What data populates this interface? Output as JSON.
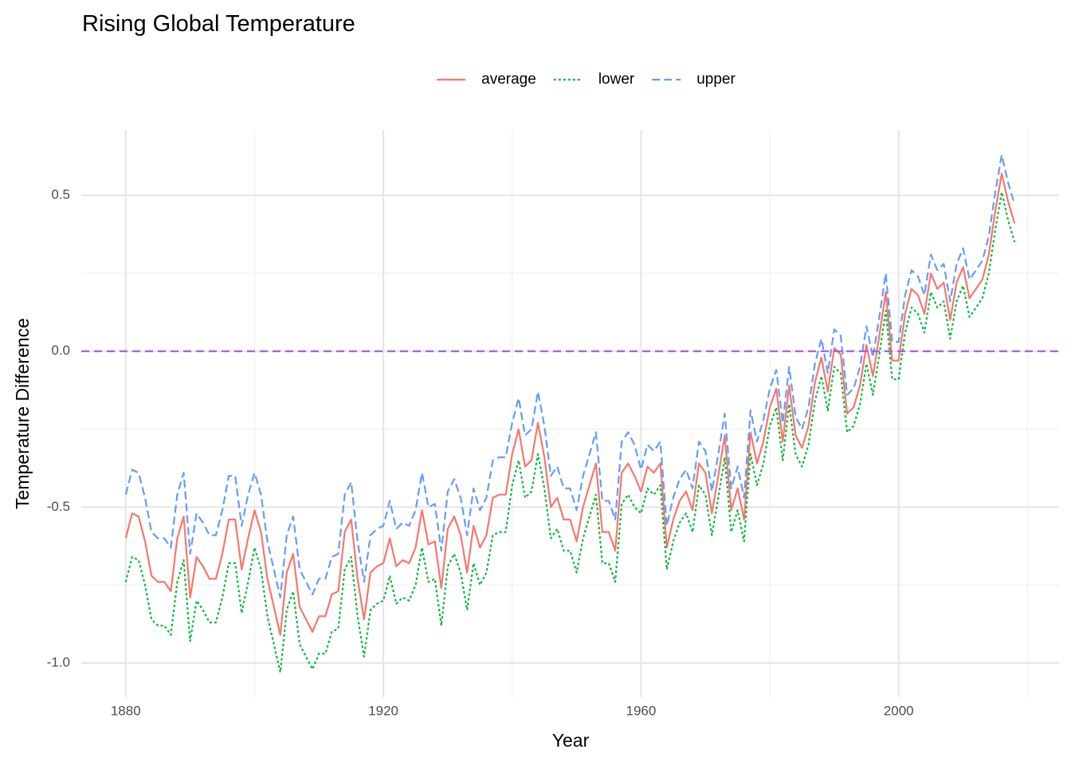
{
  "chart_data": {
    "type": "line",
    "title": "Rising Global Temperature",
    "x_label": "Year",
    "y_label": "Temperature Difference",
    "legend": "top",
    "grid": true,
    "hline": {
      "value": 0,
      "color": "#a35ee6"
    },
    "xlim": [
      1873.1,
      2024.9
    ],
    "xticks": [
      1880,
      1920,
      1960,
      2000
    ],
    "xminor": [
      1900,
      1940,
      1980,
      2020
    ],
    "ylim": [
      -1.11,
      0.71
    ],
    "yticks": [
      {
        "value": -1,
        "label": "-1.0"
      },
      -0.5,
      {
        "value": 0,
        "label": "0.0"
      },
      0.5
    ],
    "yminor": [
      -0.75,
      -0.25,
      0.25
    ],
    "x": [
      1880,
      1881,
      1882,
      1883,
      1884,
      1885,
      1886,
      1887,
      1888,
      1889,
      1890,
      1891,
      1892,
      1893,
      1894,
      1895,
      1896,
      1897,
      1898,
      1899,
      1900,
      1901,
      1902,
      1903,
      1904,
      1905,
      1906,
      1907,
      1908,
      1909,
      1910,
      1911,
      1912,
      1913,
      1914,
      1915,
      1916,
      1917,
      1918,
      1919,
      1920,
      1921,
      1922,
      1923,
      1924,
      1925,
      1926,
      1927,
      1928,
      1929,
      1930,
      1931,
      1932,
      1933,
      1934,
      1935,
      1936,
      1937,
      1938,
      1939,
      1940,
      1941,
      1942,
      1943,
      1944,
      1945,
      1946,
      1947,
      1948,
      1949,
      1950,
      1951,
      1952,
      1953,
      1954,
      1955,
      1956,
      1957,
      1958,
      1959,
      1960,
      1961,
      1962,
      1963,
      1964,
      1965,
      1966,
      1967,
      1968,
      1969,
      1970,
      1971,
      1972,
      1973,
      1974,
      1975,
      1976,
      1977,
      1978,
      1979,
      1980,
      1981,
      1982,
      1983,
      1984,
      1985,
      1986,
      1987,
      1988,
      1989,
      1990,
      1991,
      1992,
      1993,
      1994,
      1995,
      1996,
      1997,
      1998,
      1999,
      2000,
      2001,
      2002,
      2003,
      2004,
      2005,
      2006,
      2007,
      2008,
      2009,
      2010,
      2011,
      2012,
      2013,
      2014,
      2015,
      2016,
      2017,
      2018
    ],
    "series": [
      {
        "name": "average",
        "color": "#F8766D",
        "linetype": "solid",
        "values": [
          -0.6,
          -0.52,
          -0.53,
          -0.61,
          -0.72,
          -0.74,
          -0.74,
          -0.77,
          -0.6,
          -0.53,
          -0.79,
          -0.66,
          -0.69,
          -0.73,
          -0.73,
          -0.65,
          -0.54,
          -0.54,
          -0.7,
          -0.6,
          -0.51,
          -0.58,
          -0.73,
          -0.82,
          -0.91,
          -0.71,
          -0.65,
          -0.82,
          -0.86,
          -0.9,
          -0.85,
          -0.85,
          -0.78,
          -0.77,
          -0.58,
          -0.54,
          -0.73,
          -0.86,
          -0.71,
          -0.69,
          -0.68,
          -0.6,
          -0.69,
          -0.67,
          -0.68,
          -0.63,
          -0.51,
          -0.62,
          -0.61,
          -0.76,
          -0.57,
          -0.53,
          -0.59,
          -0.71,
          -0.56,
          -0.63,
          -0.59,
          -0.47,
          -0.46,
          -0.46,
          -0.33,
          -0.25,
          -0.37,
          -0.35,
          -0.23,
          -0.34,
          -0.5,
          -0.47,
          -0.54,
          -0.54,
          -0.61,
          -0.5,
          -0.43,
          -0.36,
          -0.58,
          -0.58,
          -0.64,
          -0.39,
          -0.36,
          -0.4,
          -0.45,
          -0.37,
          -0.39,
          -0.36,
          -0.63,
          -0.54,
          -0.48,
          -0.45,
          -0.51,
          -0.36,
          -0.39,
          -0.52,
          -0.4,
          -0.27,
          -0.51,
          -0.44,
          -0.54,
          -0.26,
          -0.36,
          -0.29,
          -0.18,
          -0.12,
          -0.29,
          -0.11,
          -0.27,
          -0.31,
          -0.24,
          -0.1,
          -0.02,
          -0.13,
          0.01,
          -0.01,
          -0.2,
          -0.18,
          -0.11,
          0.02,
          -0.08,
          0.05,
          0.19,
          -0.03,
          -0.03,
          0.12,
          0.2,
          0.18,
          0.12,
          0.25,
          0.2,
          0.22,
          0.1,
          0.22,
          0.27,
          0.17,
          0.2,
          0.23,
          0.31,
          0.45,
          0.57,
          0.48,
          0.41
        ]
      },
      {
        "name": "lower",
        "color": "#00BA38",
        "linetype": "dotted",
        "values": [
          -0.74,
          -0.66,
          -0.67,
          -0.75,
          -0.86,
          -0.88,
          -0.88,
          -0.91,
          -0.74,
          -0.67,
          -0.93,
          -0.8,
          -0.83,
          -0.87,
          -0.87,
          -0.79,
          -0.68,
          -0.68,
          -0.84,
          -0.74,
          -0.63,
          -0.7,
          -0.85,
          -0.94,
          -1.03,
          -0.83,
          -0.77,
          -0.94,
          -0.98,
          -1.02,
          -0.97,
          -0.97,
          -0.9,
          -0.89,
          -0.7,
          -0.66,
          -0.85,
          -0.98,
          -0.83,
          -0.81,
          -0.8,
          -0.72,
          -0.81,
          -0.79,
          -0.8,
          -0.75,
          -0.63,
          -0.74,
          -0.73,
          -0.88,
          -0.69,
          -0.65,
          -0.71,
          -0.83,
          -0.68,
          -0.75,
          -0.71,
          -0.59,
          -0.58,
          -0.58,
          -0.43,
          -0.35,
          -0.47,
          -0.45,
          -0.33,
          -0.44,
          -0.6,
          -0.57,
          -0.64,
          -0.64,
          -0.71,
          -0.6,
          -0.53,
          -0.46,
          -0.68,
          -0.68,
          -0.74,
          -0.49,
          -0.46,
          -0.5,
          -0.52,
          -0.44,
          -0.46,
          -0.43,
          -0.7,
          -0.61,
          -0.55,
          -0.52,
          -0.58,
          -0.43,
          -0.46,
          -0.59,
          -0.47,
          -0.34,
          -0.58,
          -0.51,
          -0.61,
          -0.33,
          -0.43,
          -0.36,
          -0.24,
          -0.18,
          -0.35,
          -0.17,
          -0.33,
          -0.37,
          -0.3,
          -0.16,
          -0.08,
          -0.19,
          -0.05,
          -0.07,
          -0.26,
          -0.24,
          -0.17,
          -0.04,
          -0.14,
          -0.01,
          0.13,
          -0.09,
          -0.09,
          0.06,
          0.14,
          0.12,
          0.06,
          0.19,
          0.14,
          0.16,
          0.04,
          0.16,
          0.21,
          0.11,
          0.14,
          0.17,
          0.25,
          0.39,
          0.51,
          0.42,
          0.35
        ]
      },
      {
        "name": "upper",
        "color": "#619CFF",
        "linetype": "dashed",
        "values": [
          -0.46,
          -0.38,
          -0.39,
          -0.47,
          -0.58,
          -0.6,
          -0.6,
          -0.63,
          -0.46,
          -0.39,
          -0.65,
          -0.52,
          -0.55,
          -0.59,
          -0.59,
          -0.51,
          -0.4,
          -0.4,
          -0.56,
          -0.46,
          -0.39,
          -0.46,
          -0.61,
          -0.7,
          -0.79,
          -0.59,
          -0.53,
          -0.7,
          -0.74,
          -0.78,
          -0.73,
          -0.73,
          -0.66,
          -0.65,
          -0.46,
          -0.42,
          -0.61,
          -0.74,
          -0.59,
          -0.57,
          -0.56,
          -0.48,
          -0.57,
          -0.55,
          -0.56,
          -0.51,
          -0.39,
          -0.5,
          -0.49,
          -0.64,
          -0.45,
          -0.41,
          -0.47,
          -0.59,
          -0.44,
          -0.51,
          -0.47,
          -0.35,
          -0.34,
          -0.34,
          -0.23,
          -0.15,
          -0.27,
          -0.25,
          -0.13,
          -0.24,
          -0.4,
          -0.37,
          -0.44,
          -0.44,
          -0.51,
          -0.4,
          -0.33,
          -0.26,
          -0.48,
          -0.48,
          -0.54,
          -0.29,
          -0.26,
          -0.3,
          -0.38,
          -0.3,
          -0.32,
          -0.29,
          -0.56,
          -0.47,
          -0.41,
          -0.38,
          -0.44,
          -0.29,
          -0.32,
          -0.45,
          -0.33,
          -0.2,
          -0.44,
          -0.37,
          -0.47,
          -0.19,
          -0.29,
          -0.22,
          -0.12,
          -0.06,
          -0.23,
          -0.05,
          -0.21,
          -0.25,
          -0.18,
          -0.04,
          0.04,
          -0.07,
          0.07,
          0.05,
          -0.14,
          -0.12,
          -0.05,
          0.08,
          -0.02,
          0.11,
          0.25,
          0.03,
          0.03,
          0.18,
          0.26,
          0.24,
          0.18,
          0.31,
          0.26,
          0.28,
          0.16,
          0.28,
          0.33,
          0.23,
          0.26,
          0.29,
          0.37,
          0.51,
          0.63,
          0.54,
          0.47
        ]
      }
    ]
  }
}
